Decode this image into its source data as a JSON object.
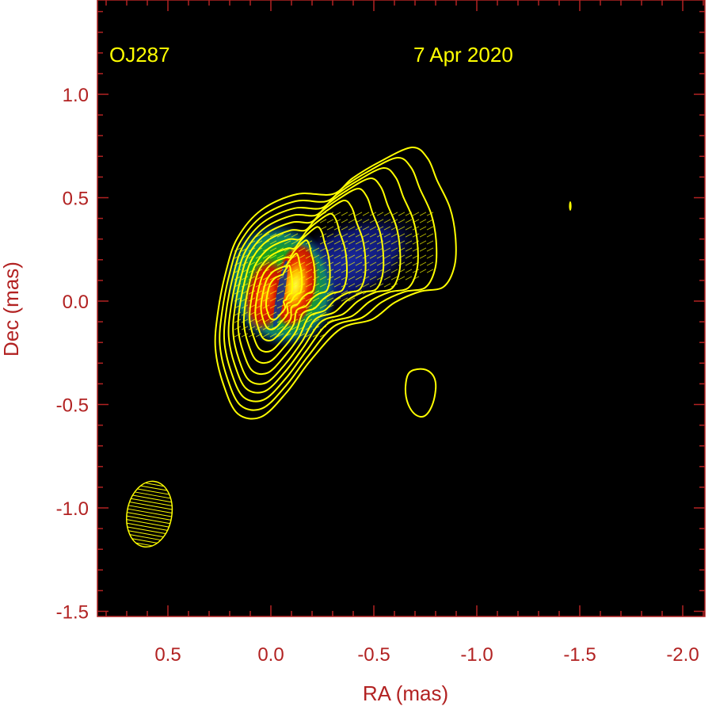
{
  "chart_data": {
    "type": "heatmap",
    "title": "",
    "source_label": "OJ287",
    "date_label": "7 Apr 2020",
    "xlabel": "RA (mas)",
    "ylabel": "Dec (mas)",
    "xlim": [
      0.83,
      -2.12
    ],
    "ylim": [
      -1.52,
      1.45
    ],
    "x_ticks": [
      {
        "value": 0.5,
        "label": "0.5"
      },
      {
        "value": 0.0,
        "label": "0.0"
      },
      {
        "value": -0.5,
        "label": "-0.5"
      },
      {
        "value": -1.0,
        "label": "-1.0"
      },
      {
        "value": -1.5,
        "label": "-1.5"
      },
      {
        "value": -2.0,
        "label": "-2.0"
      }
    ],
    "y_ticks": [
      {
        "value": 1.0,
        "label": "1.0"
      },
      {
        "value": 0.5,
        "label": "0.5"
      },
      {
        "value": 0.0,
        "label": "0.0"
      },
      {
        "value": -0.5,
        "label": "-0.5"
      },
      {
        "value": -1.0,
        "label": "-1.0"
      },
      {
        "value": -1.5,
        "label": "-1.5"
      }
    ],
    "intensity_peaks": [
      {
        "x": 0.04,
        "y": 0.02,
        "level": "red"
      },
      {
        "x": -0.1,
        "y": 0.07,
        "level": "yellow"
      }
    ],
    "beam": {
      "x": 0.59,
      "y": -1.03,
      "major_mas": 0.32,
      "minor_mas": 0.15,
      "pa_deg": 10
    },
    "grid": false,
    "colors": {
      "frame": "#b22222",
      "labels": "#b22222",
      "inset_text": "#ffff00",
      "contours": "#ffff00",
      "background": "#000000"
    }
  }
}
